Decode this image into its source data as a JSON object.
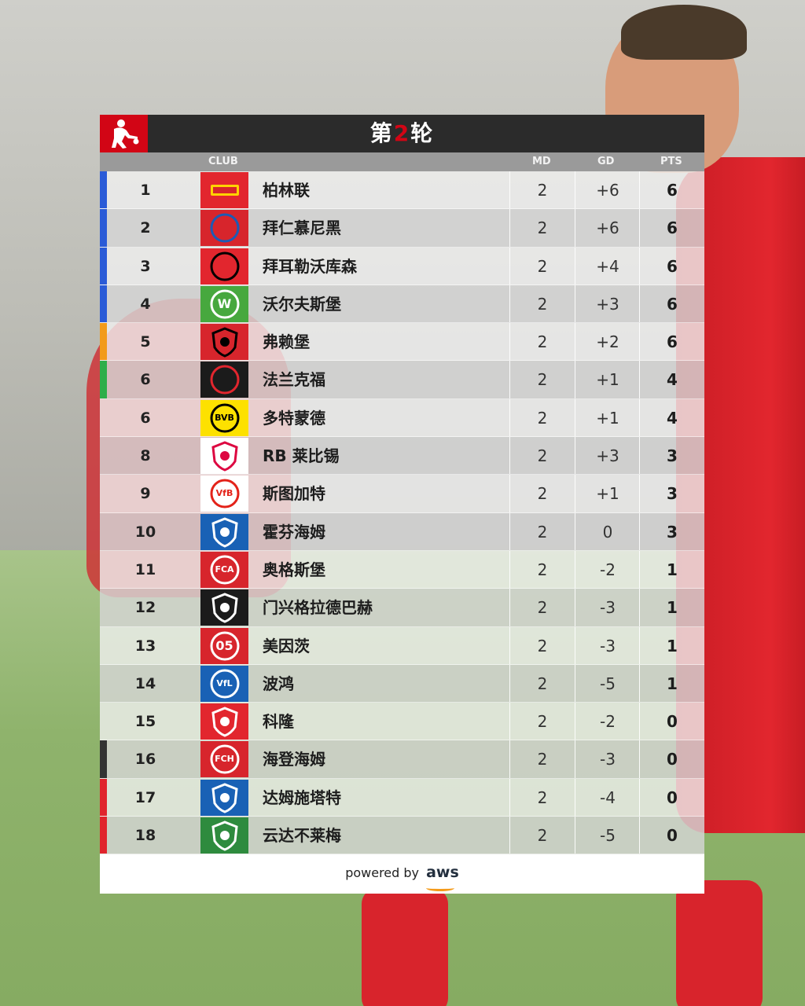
{
  "header": {
    "title_prefix": "第",
    "title_number": "2",
    "title_suffix": "轮"
  },
  "columns": {
    "club": "CLUB",
    "md": "MD",
    "gd": "GD",
    "pts": "PTS"
  },
  "colors": {
    "champions_league": "#2a5bd7",
    "europa_league": "#f29b1b",
    "conference_league": "#2eae4a",
    "relegation_playoff": "#333333",
    "relegation": "#e0242c",
    "header_bg": "#2b2b2b",
    "brand_red": "#d20515"
  },
  "rows": [
    {
      "pos": "1",
      "club": "柏林联",
      "md": "2",
      "gd": "+6",
      "pts": "6",
      "zone": "#2a5bd7",
      "badge": "union-berlin-icon",
      "badge_bg": "#e2262e",
      "badge_fg": "#ffd200",
      "badge_text": ""
    },
    {
      "pos": "2",
      "club": "拜仁慕尼黑",
      "md": "2",
      "gd": "+6",
      "pts": "6",
      "zone": "#2a5bd7",
      "badge": "bayern-munich-icon",
      "badge_bg": "#d7252c",
      "badge_fg": "#1c5bb5",
      "badge_text": ""
    },
    {
      "pos": "3",
      "club": "拜耳勒沃库森",
      "md": "2",
      "gd": "+4",
      "pts": "6",
      "zone": "#2a5bd7",
      "badge": "leverkusen-icon",
      "badge_bg": "#e2262e",
      "badge_fg": "#000000",
      "badge_text": ""
    },
    {
      "pos": "4",
      "club": "沃尔夫斯堡",
      "md": "2",
      "gd": "+3",
      "pts": "6",
      "zone": "#2a5bd7",
      "badge": "wolfsburg-icon",
      "badge_bg": "#47a83e",
      "badge_fg": "#ffffff",
      "badge_text": "W"
    },
    {
      "pos": "5",
      "club": "弗赖堡",
      "md": "2",
      "gd": "+2",
      "pts": "6",
      "zone": "#f29b1b",
      "badge": "freiburg-icon",
      "badge_bg": "#d7252c",
      "badge_fg": "#000000",
      "badge_text": ""
    },
    {
      "pos": "6",
      "club": "法兰克福",
      "md": "2",
      "gd": "+1",
      "pts": "4",
      "zone": "#2eae4a",
      "badge": "frankfurt-icon",
      "badge_bg": "#1b1b1b",
      "badge_fg": "#e2262e",
      "badge_text": ""
    },
    {
      "pos": "6",
      "club": "多特蒙德",
      "md": "2",
      "gd": "+1",
      "pts": "4",
      "zone": "",
      "badge": "dortmund-icon",
      "badge_bg": "#fde100",
      "badge_fg": "#000000",
      "badge_text": "BVB"
    },
    {
      "pos": "8",
      "club": "RB 莱比锡",
      "md": "2",
      "gd": "+3",
      "pts": "3",
      "zone": "",
      "badge": "leipzig-icon",
      "badge_bg": "#ffffff",
      "badge_fg": "#dd0741",
      "badge_text": ""
    },
    {
      "pos": "9",
      "club": "斯图加特",
      "md": "2",
      "gd": "+1",
      "pts": "3",
      "zone": "",
      "badge": "stuttgart-icon",
      "badge_bg": "#ffffff",
      "badge_fg": "#e32219",
      "badge_text": "VfB"
    },
    {
      "pos": "10",
      "club": "霍芬海姆",
      "md": "2",
      "gd": "0",
      "pts": "3",
      "zone": "",
      "badge": "hoffenheim-icon",
      "badge_bg": "#1961b5",
      "badge_fg": "#ffffff",
      "badge_text": ""
    },
    {
      "pos": "11",
      "club": "奥格斯堡",
      "md": "2",
      "gd": "-2",
      "pts": "1",
      "zone": "",
      "badge": "augsburg-icon",
      "badge_bg": "#d7252c",
      "badge_fg": "#ffffff",
      "badge_text": "FCA"
    },
    {
      "pos": "12",
      "club": "门兴格拉德巴赫",
      "md": "2",
      "gd": "-3",
      "pts": "1",
      "zone": "",
      "badge": "gladbach-icon",
      "badge_bg": "#1b1b1b",
      "badge_fg": "#ffffff",
      "badge_text": ""
    },
    {
      "pos": "13",
      "club": "美因茨",
      "md": "2",
      "gd": "-3",
      "pts": "1",
      "zone": "",
      "badge": "mainz-icon",
      "badge_bg": "#d7252c",
      "badge_fg": "#ffffff",
      "badge_text": "05"
    },
    {
      "pos": "14",
      "club": "波鸿",
      "md": "2",
      "gd": "-5",
      "pts": "1",
      "zone": "",
      "badge": "bochum-icon",
      "badge_bg": "#1961b5",
      "badge_fg": "#ffffff",
      "badge_text": "VfL"
    },
    {
      "pos": "15",
      "club": "科隆",
      "md": "2",
      "gd": "-2",
      "pts": "0",
      "zone": "",
      "badge": "koln-icon",
      "badge_bg": "#e2262e",
      "badge_fg": "#ffffff",
      "badge_text": ""
    },
    {
      "pos": "16",
      "club": "海登海姆",
      "md": "2",
      "gd": "-3",
      "pts": "0",
      "zone": "#333333",
      "badge": "heidenheim-icon",
      "badge_bg": "#d7252c",
      "badge_fg": "#ffffff",
      "badge_text": "FCH"
    },
    {
      "pos": "17",
      "club": "达姆施塔特",
      "md": "2",
      "gd": "-4",
      "pts": "0",
      "zone": "#e0242c",
      "badge": "darmstadt-icon",
      "badge_bg": "#1961b5",
      "badge_fg": "#ffffff",
      "badge_text": ""
    },
    {
      "pos": "18",
      "club": "云达不莱梅",
      "md": "2",
      "gd": "-5",
      "pts": "0",
      "zone": "#e0242c",
      "badge": "werder-bremen-icon",
      "badge_bg": "#2e8b3e",
      "badge_fg": "#ffffff",
      "badge_text": ""
    }
  ],
  "footer": {
    "powered_by": "powered by",
    "brand": "aws"
  }
}
